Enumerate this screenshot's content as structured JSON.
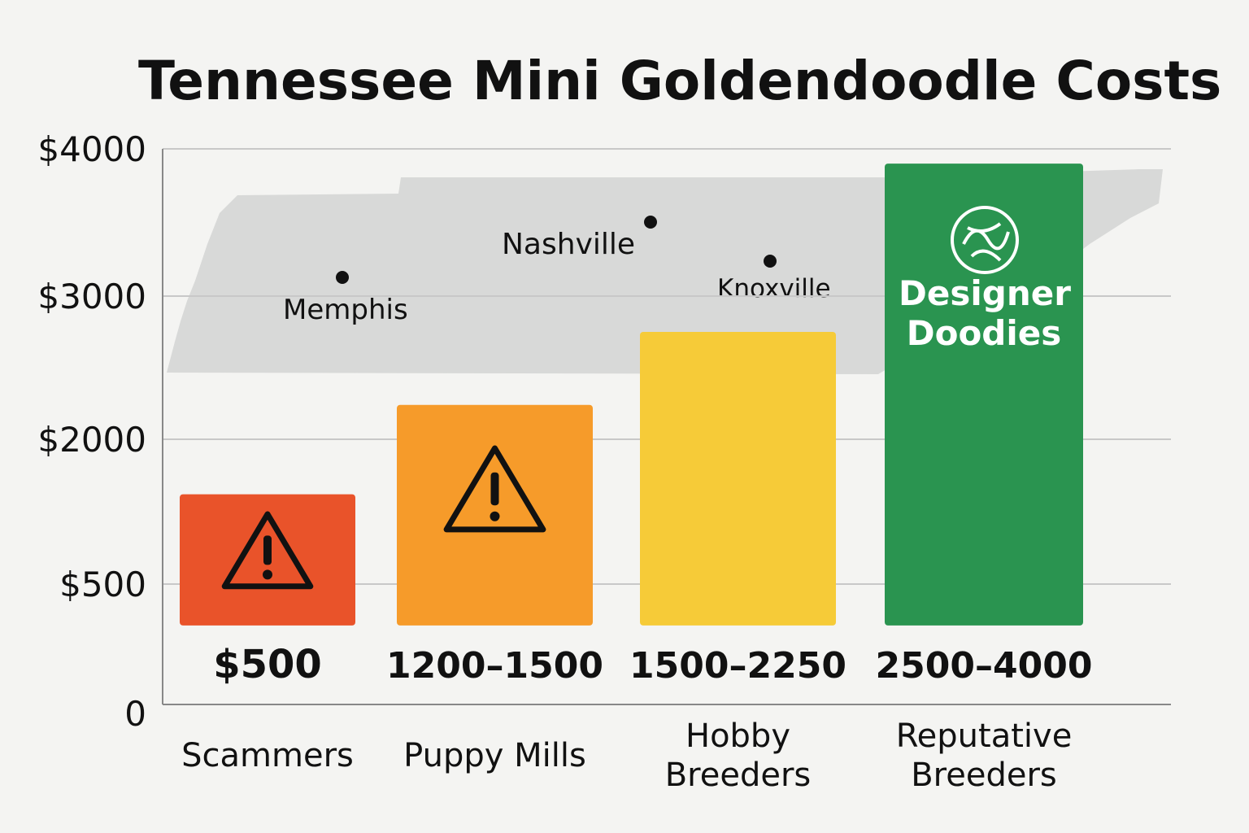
{
  "chart_data": {
    "type": "bar",
    "title": "Tennessee Mini Goldendoodle Costs",
    "xlabel": "",
    "ylabel": "",
    "y_ticks": [
      {
        "value": 4000,
        "label": "$4000"
      },
      {
        "value": 3000,
        "label": "$3000"
      },
      {
        "value": 2000,
        "label": "$2000"
      },
      {
        "value": 500,
        "label": "$500"
      },
      {
        "value": 0,
        "label": "0"
      }
    ],
    "y_scale": "nonlinear (ticks unevenly spaced)",
    "ylim": [
      0,
      4000
    ],
    "grid": true,
    "categories": [
      "Scammers",
      "Puppy Mills",
      "Hobby Breeders",
      "Reputative Breeders"
    ],
    "category_label_lines": [
      [
        "Scammers"
      ],
      [
        "Puppy Mills"
      ],
      [
        "Hobby",
        "Breeders"
      ],
      [
        "Reputative",
        "Breeders"
      ]
    ],
    "values": [
      1430,
      2240,
      2750,
      3900
    ],
    "bar_base": 340,
    "data_labels": [
      "$500",
      "1200–1500",
      "1500–2250",
      "2500–4000"
    ],
    "colors": [
      "#e9532a",
      "#f69b2a",
      "#f6cb38",
      "#2a9450"
    ],
    "bar_icons": [
      "warning-icon",
      "warning-icon",
      "",
      "designer-doodles-logo"
    ],
    "background_map": {
      "name": "Tennessee",
      "color": "#d8d9d8",
      "cities": [
        "Memphis",
        "Nashville",
        "Knoxville"
      ]
    },
    "logo_text": [
      "Designer",
      "Doodies"
    ]
  }
}
